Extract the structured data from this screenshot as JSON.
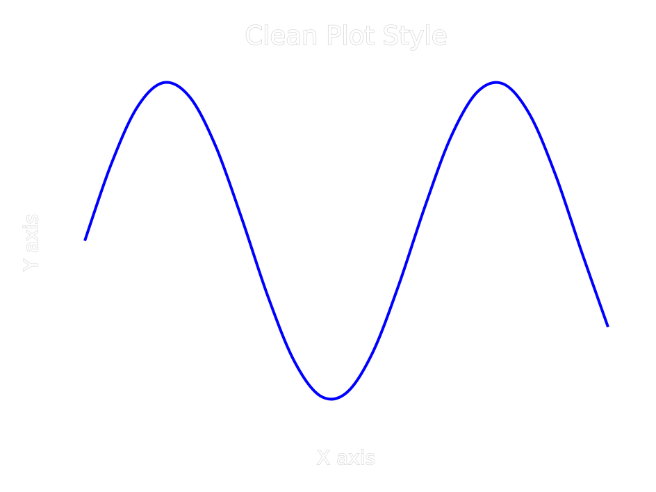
{
  "chart_data": {
    "type": "line",
    "title": "Clean Plot Style",
    "xlabel": "X axis",
    "ylabel": "Y axis",
    "xlim": [
      0,
      10
    ],
    "ylim": [
      -1.1,
      1.1
    ],
    "grid": false,
    "legend": "none",
    "x_ticks": [],
    "y_ticks": [],
    "series": [
      {
        "color": "#0000ff",
        "x": [
          0,
          0.5,
          1,
          1.5,
          2,
          2.5,
          3,
          3.5,
          4,
          4.5,
          5,
          5.5,
          6,
          6.5,
          7,
          7.5,
          8,
          8.5,
          9,
          9.5,
          10
        ],
        "y": [
          0,
          0.479,
          0.841,
          0.997,
          0.909,
          0.598,
          0.141,
          -0.351,
          -0.757,
          -0.978,
          -0.959,
          -0.706,
          -0.279,
          0.215,
          0.657,
          0.938,
          0.989,
          0.798,
          0.412,
          -0.075,
          -0.544
        ]
      }
    ]
  }
}
